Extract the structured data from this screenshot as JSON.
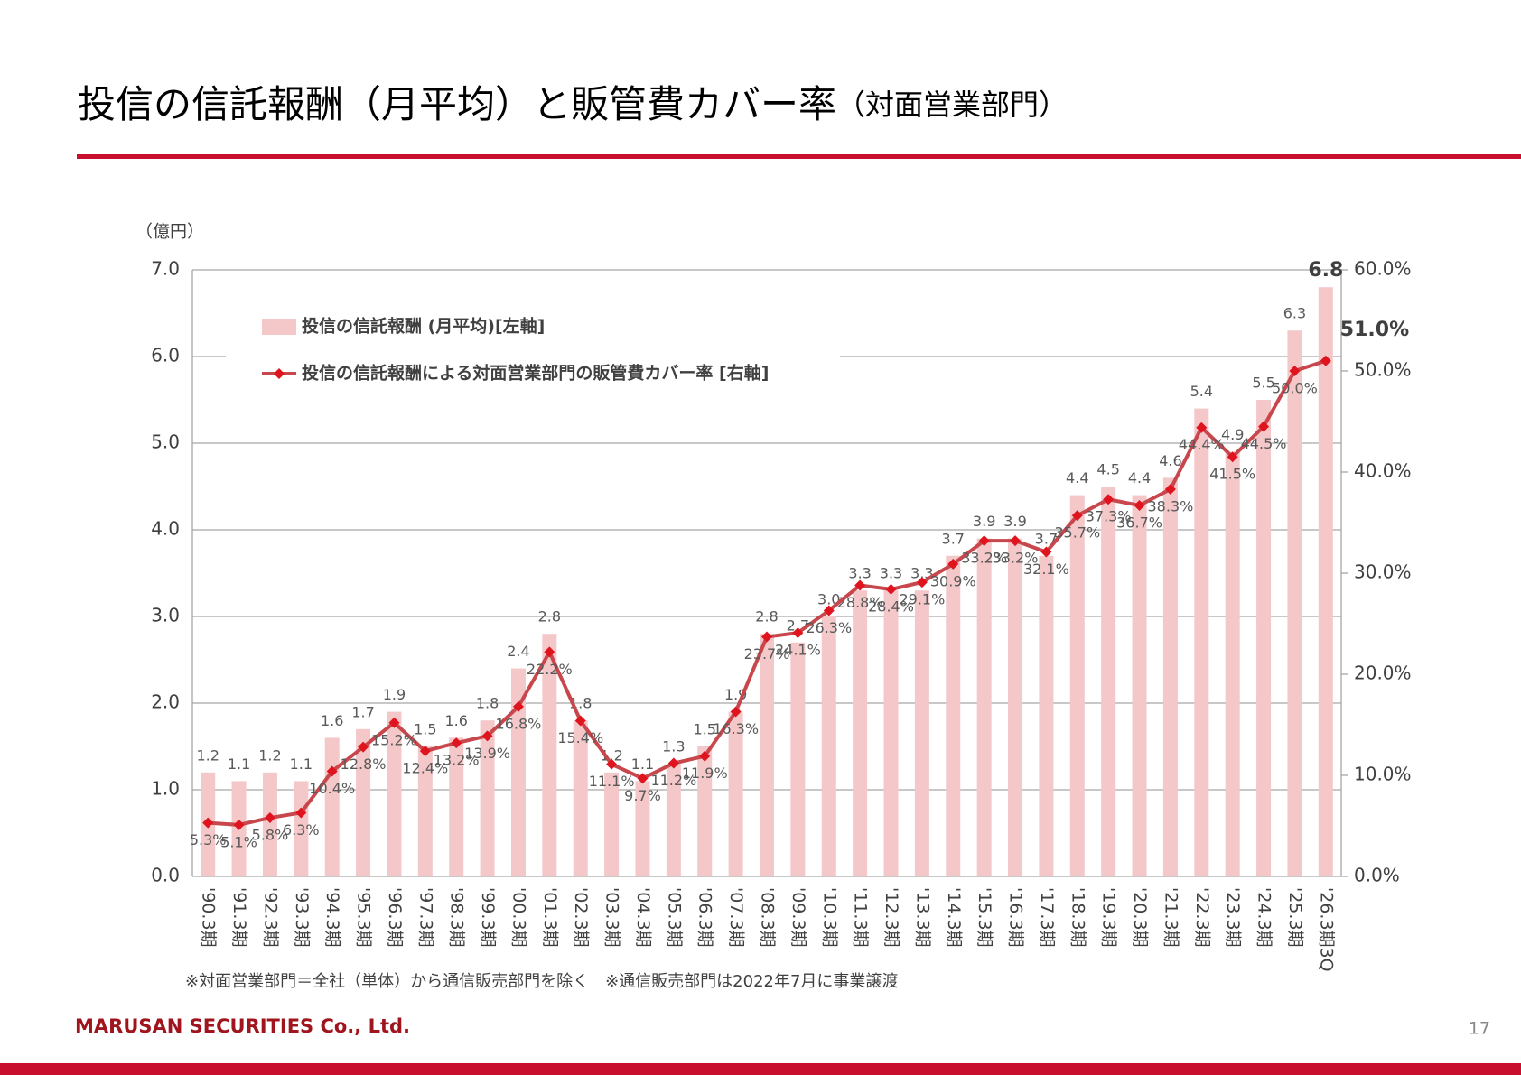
{
  "header": {
    "title": "投信の信託報酬（月平均）と販管費カバー率",
    "subtitle": "（対面営業部門）"
  },
  "chart_data": {
    "type": "bar-line",
    "y_unit": "（億円）",
    "categories": [
      "'90.3期",
      "'91.3期",
      "'92.3期",
      "'93.3期",
      "'94.3期",
      "'95.3期",
      "'96.3期",
      "'97.3期",
      "'98.3期",
      "'99.3期",
      "'00.3期",
      "'01.3期",
      "'02.3期",
      "'03.3期",
      "'04.3期",
      "'05.3期",
      "'06.3期",
      "'07.3期",
      "'08.3期",
      "'09.3期",
      "'10.3期",
      "'11.3期",
      "'12.3期",
      "'13.3期",
      "'14.3期",
      "'15.3期",
      "'16.3期",
      "'17.3期",
      "'18.3期",
      "'19.3期",
      "'20.3期",
      "'21.3期",
      "'22.3期",
      "'23.3期",
      "'24.3期",
      "'25.3期",
      "'26.3期3Q"
    ],
    "series": [
      {
        "name": "投信の信託報酬 (月平均)[左軸]",
        "type": "bar",
        "color": "#f4c7c9",
        "values": [
          1.2,
          1.1,
          1.2,
          1.1,
          1.6,
          1.7,
          1.9,
          1.5,
          1.6,
          1.8,
          2.4,
          2.8,
          1.8,
          1.2,
          1.1,
          1.3,
          1.5,
          1.9,
          2.8,
          2.7,
          3.0,
          3.3,
          3.3,
          3.3,
          3.7,
          3.9,
          3.9,
          3.7,
          4.4,
          4.5,
          4.4,
          4.6,
          5.4,
          4.9,
          5.5,
          6.3,
          6.8
        ],
        "value_labels": [
          "1.2",
          "1.1",
          "1.2",
          "1.1",
          "1.6",
          "1.7",
          "1.9",
          "1.5",
          "1.6",
          "1.8",
          "2.4",
          "2.8",
          "1.8",
          "1.2",
          "1.1",
          "1.3",
          "1.5",
          "1.9",
          "2.8",
          "2.7",
          "3.0",
          "3.3",
          "3.3",
          "3.3",
          "3.7",
          "3.9",
          "3.9",
          "3.7",
          "4.4",
          "4.5",
          "4.4",
          "4.6",
          "5.4",
          "4.9",
          "5.5",
          "6.3",
          "6.8"
        ]
      },
      {
        "name": "投信の信託報酬による対面営業部門の販管費カバー率 [右軸]",
        "type": "line",
        "axis": "y2",
        "color": "#c8474d",
        "marker_color": "#e0141e",
        "values": [
          5.3,
          5.1,
          5.8,
          6.3,
          10.4,
          12.8,
          15.2,
          12.4,
          13.2,
          13.9,
          16.8,
          22.2,
          15.4,
          11.1,
          9.7,
          11.2,
          11.9,
          16.3,
          23.7,
          24.1,
          26.3,
          28.8,
          28.4,
          29.1,
          30.9,
          33.2,
          33.2,
          32.1,
          35.7,
          37.3,
          36.7,
          38.3,
          44.4,
          41.5,
          44.5,
          50.0,
          51.0
        ],
        "value_labels": [
          "5.3%",
          "5.1%",
          "5.8%",
          "6.3%",
          "10.4%",
          "12.8%",
          "15.2%",
          "12.4%",
          "13.2%",
          "13.9%",
          "16.8%",
          "22.2%",
          "15.4%",
          "11.1%",
          "9.7%",
          "11.2%",
          "11.9%",
          "16.3%",
          "23.7%",
          "24.1%",
          "26.3%",
          "28.8%",
          "28.4%",
          "29.1%",
          "30.9%",
          "33.2%",
          "33.2%",
          "32.1%",
          "35.7%",
          "37.3%",
          "36.7%",
          "38.3%",
          "44.4%",
          "41.5%",
          "44.5%",
          "50.0%",
          "51.0%"
        ]
      }
    ],
    "ylim": [
      0,
      7
    ],
    "yticks": [
      {
        "value": 0,
        "label": "0.0"
      },
      {
        "value": 1,
        "label": "1.0"
      },
      {
        "value": 2,
        "label": "2.0"
      },
      {
        "value": 3,
        "label": "3.0"
      },
      {
        "value": 4,
        "label": "4.0"
      },
      {
        "value": 5,
        "label": "5.0"
      },
      {
        "value": 6,
        "label": "6.0"
      },
      {
        "value": 7,
        "label": "7.0"
      }
    ],
    "y2lim": [
      0,
      60
    ],
    "y2ticks": [
      {
        "value": 0,
        "label": "0.0%"
      },
      {
        "value": 10,
        "label": "10.0%"
      },
      {
        "value": 20,
        "label": "20.0%"
      },
      {
        "value": 30,
        "label": "30.0%"
      },
      {
        "value": 40,
        "label": "40.0%"
      },
      {
        "value": 50,
        "label": "50.0%"
      },
      {
        "value": 60,
        "label": "60.0%"
      }
    ],
    "grid": true,
    "legend": "top-left",
    "footnote": "※対面営業部門＝全社（単体）から通信販売部門を除く　※通信販売部門は2022年7月に事業譲渡"
  },
  "footer": {
    "company": "MARUSAN SECURITIES Co., Ltd.",
    "page": "17"
  }
}
